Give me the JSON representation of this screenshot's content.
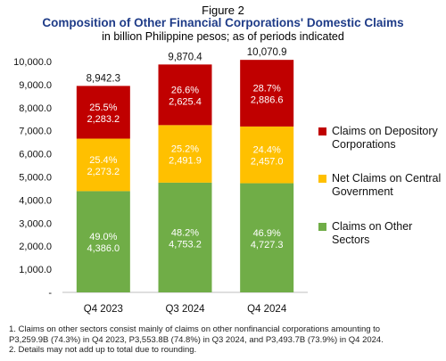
{
  "figure_label": "Figure 2",
  "chart_data": {
    "type": "bar",
    "stacked": true,
    "title": "Composition of Other Financial Corporations' Domestic Claims",
    "subtitle": "in billion Philippine pesos; as of periods indicated",
    "categories": [
      "Q4 2023",
      "Q3 2024",
      "Q4 2024"
    ],
    "totals": [
      "8,942.3",
      "9,870.4",
      "10,070.9"
    ],
    "ylim": [
      0,
      10000
    ],
    "yticks": [
      "-",
      "1,000.0",
      "2,000.0",
      "3,000.0",
      "4,000.0",
      "5,000.0",
      "6,000.0",
      "7,000.0",
      "8,000.0",
      "9,000.0",
      "10,000.0"
    ],
    "series": [
      {
        "name": "Claims on Other Sectors",
        "color": "#70ad47",
        "values": [
          4386.0,
          4753.2,
          4727.3
        ],
        "percent_labels": [
          "49.0%",
          "48.2%",
          "46.9%"
        ],
        "value_labels": [
          "4,386.0",
          "4,753.2",
          "4,727.3"
        ]
      },
      {
        "name": "Net Claims on Central Government",
        "color": "#ffc000",
        "values": [
          2273.2,
          2491.9,
          2457.0
        ],
        "percent_labels": [
          "25.4%",
          "25.2%",
          "24.4%"
        ],
        "value_labels": [
          "2,273.2",
          "2,491.9",
          "2,457.0"
        ]
      },
      {
        "name": "Claims on Depository Corporations",
        "color": "#c00000",
        "values": [
          2283.2,
          2625.4,
          2886.6
        ],
        "percent_labels": [
          "25.5%",
          "26.6%",
          "28.7%"
        ],
        "value_labels": [
          "2,283.2",
          "2,625.4",
          "2,886.6"
        ]
      }
    ],
    "legend": [
      {
        "label": "Claims on Depository\nCorporations",
        "color": "#c00000"
      },
      {
        "label": "Net Claims on Central\nGovernment",
        "color": "#ffc000"
      },
      {
        "label": "Claims on Other\nSectors",
        "color": "#70ad47"
      }
    ],
    "legend_position": "right",
    "grid": false
  },
  "footnotes": [
    "1. Claims on other sectors consist mainly of claims on other nonfinancial corporations amounting to\n    P3,259.9B (74.3%) in Q4 2023, P3,553.8B (74.8%) in Q3 2024, and P3,493.7B (73.9%) in Q4 2024.",
    "2. Details may not add up to total due to rounding."
  ]
}
